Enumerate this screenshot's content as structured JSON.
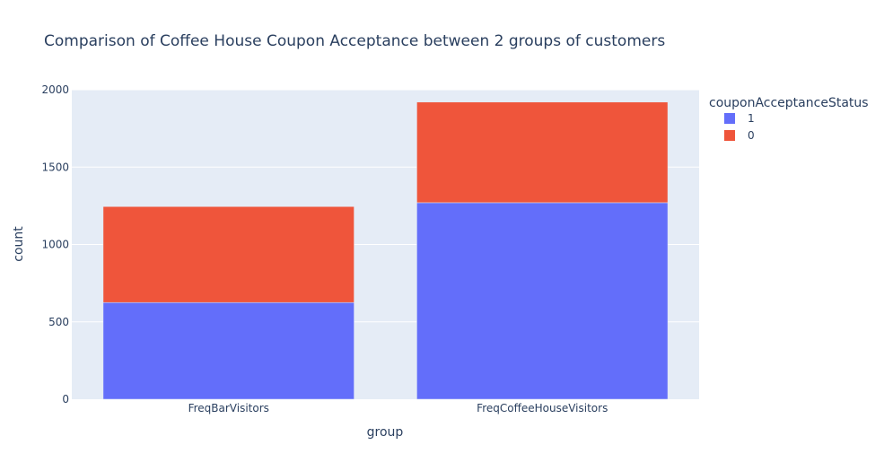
{
  "chart_data": {
    "type": "bar",
    "barmode": "stack",
    "title": "Comparison of Coffee House Coupon Acceptance between 2 groups of customers",
    "xlabel": "group",
    "ylabel": "count",
    "categories": [
      "FreqBarVisitors",
      "FreqCoffeeHouseVisitors"
    ],
    "series": [
      {
        "name": "1",
        "values": [
          625,
          1270
        ],
        "color": "#636efa"
      },
      {
        "name": "0",
        "values": [
          620,
          650
        ],
        "color": "#ef553b"
      }
    ],
    "ylim": [
      0,
      2000
    ],
    "yticks": [
      "0",
      "500",
      "1000",
      "1500",
      "2000"
    ],
    "legend": {
      "title": "couponAcceptanceStatus",
      "placement": "right"
    },
    "grid": true,
    "plot_bg": "#e5ecf6"
  }
}
